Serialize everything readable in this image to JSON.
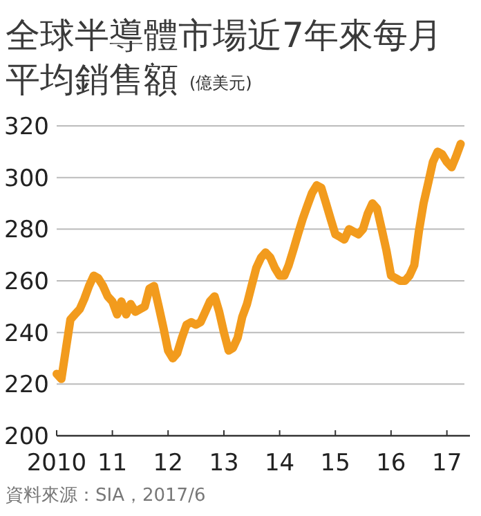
{
  "chart_data": {
    "type": "line",
    "title": "全球半導體市場近7年來每月平均銷售額",
    "ylabel": "(億美元)",
    "annotations": [
      "資料來源：SIA，2017/6"
    ],
    "x": [
      "2010-01",
      "2010-02",
      "2010-03",
      "2010-04",
      "2010-05",
      "2010-06",
      "2010-07",
      "2010-08",
      "2010-09",
      "2010-10",
      "2010-11",
      "2010-12",
      "2011-01",
      "2011-02",
      "2011-03",
      "2011-04",
      "2011-05",
      "2011-06",
      "2011-07",
      "2011-08",
      "2011-09",
      "2011-10",
      "2011-11",
      "2011-12",
      "2012-01",
      "2012-02",
      "2012-03",
      "2012-04",
      "2012-05",
      "2012-06",
      "2012-07",
      "2012-08",
      "2012-09",
      "2012-10",
      "2012-11",
      "2012-12",
      "2013-01",
      "2013-02",
      "2013-03",
      "2013-04",
      "2013-05",
      "2013-06",
      "2013-07",
      "2013-08",
      "2013-09",
      "2013-10",
      "2013-11",
      "2013-12",
      "2014-01",
      "2014-02",
      "2014-03",
      "2014-04",
      "2014-05",
      "2014-06",
      "2014-07",
      "2014-08",
      "2014-09",
      "2014-10",
      "2014-11",
      "2014-12",
      "2015-01",
      "2015-02",
      "2015-03",
      "2015-04",
      "2015-05",
      "2015-06",
      "2015-07",
      "2015-08",
      "2015-09",
      "2015-10",
      "2015-11",
      "2015-12",
      "2016-01",
      "2016-02",
      "2016-03",
      "2016-04",
      "2016-05",
      "2016-06",
      "2016-07",
      "2016-08",
      "2016-09",
      "2016-10",
      "2016-11",
      "2016-12",
      "2017-01",
      "2017-02",
      "2017-03",
      "2017-04"
    ],
    "series": [
      {
        "color": "#f29b1d",
        "values": [
          224,
          222,
          233,
          245,
          247,
          249,
          253,
          258,
          262,
          261,
          258,
          254,
          252,
          247,
          252,
          247,
          251,
          248,
          249,
          250,
          257,
          258,
          250,
          242,
          233,
          230,
          232,
          238,
          243,
          244,
          243,
          244,
          248,
          252,
          254,
          248,
          240,
          233,
          234,
          238,
          246,
          251,
          258,
          265,
          269,
          271,
          269,
          265,
          262,
          262,
          266,
          272,
          278,
          284,
          289,
          294,
          297,
          296,
          290,
          284,
          278,
          277,
          276,
          280,
          279,
          278,
          280,
          286,
          290,
          288,
          280,
          272,
          262,
          261,
          260,
          260,
          262,
          266,
          279,
          290,
          298,
          306,
          310,
          309,
          306,
          304,
          308,
          313
        ]
      }
    ],
    "xlim": [
      "2010-01",
      "2017-06"
    ],
    "xticks": [
      {
        "value": "2010",
        "label": "2010"
      },
      {
        "value": "2011",
        "label": "11"
      },
      {
        "value": "2012",
        "label": "12"
      },
      {
        "value": "2013",
        "label": "13"
      },
      {
        "value": "2014",
        "label": "14"
      },
      {
        "value": "2015",
        "label": "15"
      },
      {
        "value": "2016",
        "label": "16"
      },
      {
        "value": "2017",
        "label": "17"
      }
    ],
    "ylim": [
      200,
      320
    ],
    "yticks": [
      200,
      220,
      240,
      260,
      280,
      300,
      320
    ],
    "grid": "y",
    "marker": "none",
    "line_style": "solid"
  }
}
